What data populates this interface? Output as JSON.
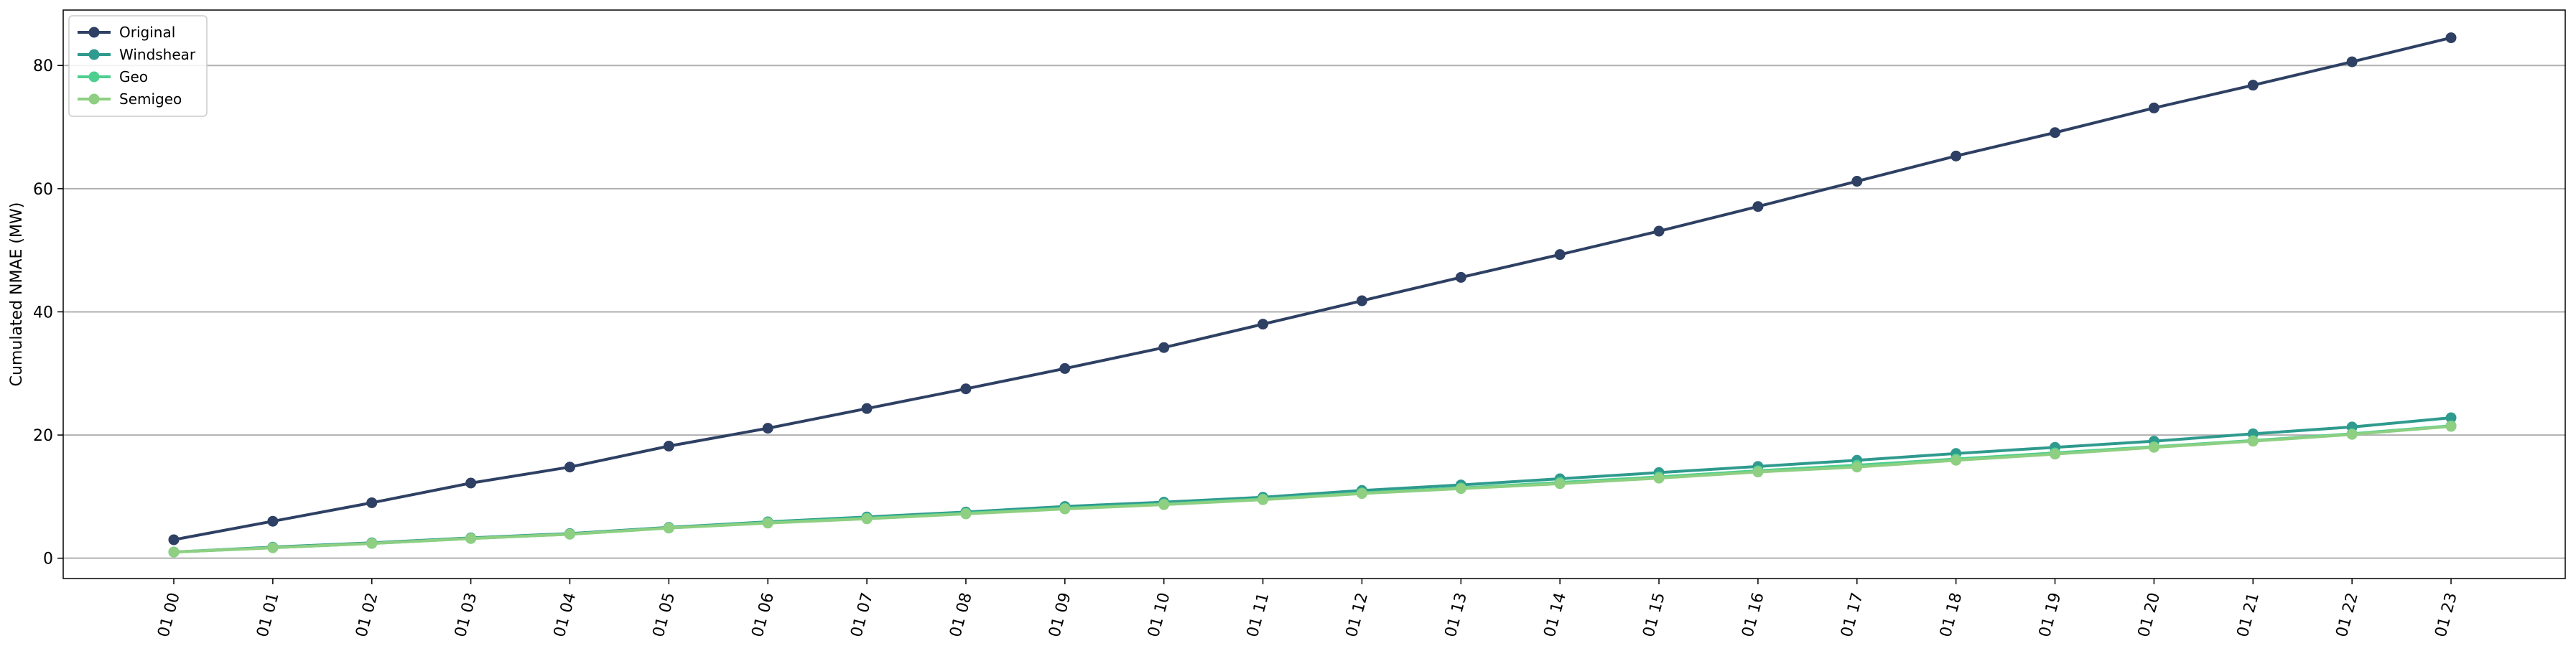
{
  "chart_data": {
    "type": "line",
    "title": "",
    "xlabel": "",
    "ylabel": "Cumulated NMAE (MW)",
    "categories": [
      "01 00",
      "01 01",
      "01 02",
      "01 03",
      "01 04",
      "01 05",
      "01 06",
      "01 07",
      "01 08",
      "01 09",
      "01 10",
      "01 11",
      "01 12",
      "01 13",
      "01 14",
      "01 15",
      "01 16",
      "01 17",
      "01 18",
      "01 19",
      "01 20",
      "01 21",
      "01 22",
      "01 23"
    ],
    "ylim": [
      -3.3,
      89
    ],
    "yticks": [
      0,
      20,
      40,
      60,
      80
    ],
    "grid": "y",
    "legend_position": "top-left",
    "series": [
      {
        "name": "Original",
        "color": "#2e4063",
        "values": [
          3.0,
          6.0,
          9.0,
          12.2,
          14.8,
          18.2,
          21.1,
          24.3,
          27.5,
          30.8,
          34.2,
          38.0,
          41.8,
          45.6,
          49.3,
          53.1,
          57.1,
          61.2,
          65.3,
          69.1,
          73.1,
          76.8,
          80.6,
          84.5
        ]
      },
      {
        "name": "Windshear",
        "color": "#2f9a8e",
        "values": [
          1.0,
          1.8,
          2.5,
          3.3,
          4.0,
          5.0,
          5.9,
          6.7,
          7.5,
          8.4,
          9.1,
          9.9,
          11.0,
          11.9,
          12.9,
          13.9,
          14.9,
          15.9,
          17.0,
          18.0,
          19.0,
          20.2,
          21.3,
          22.8
        ]
      },
      {
        "name": "Geo",
        "color": "#4ecf8f",
        "values": [
          1.0,
          1.7,
          2.4,
          3.2,
          3.9,
          4.9,
          5.8,
          6.5,
          7.3,
          8.1,
          8.8,
          9.6,
          10.6,
          11.4,
          12.3,
          13.2,
          14.2,
          15.1,
          16.1,
          17.1,
          18.1,
          19.1,
          20.2,
          21.5
        ]
      },
      {
        "name": "Semigeo",
        "color": "#8ecf82",
        "values": [
          1.0,
          1.7,
          2.4,
          3.2,
          3.9,
          4.9,
          5.7,
          6.4,
          7.2,
          8.0,
          8.7,
          9.5,
          10.5,
          11.3,
          12.1,
          13.0,
          14.0,
          14.8,
          15.9,
          16.9,
          18.0,
          19.0,
          20.1,
          21.4
        ]
      }
    ]
  }
}
